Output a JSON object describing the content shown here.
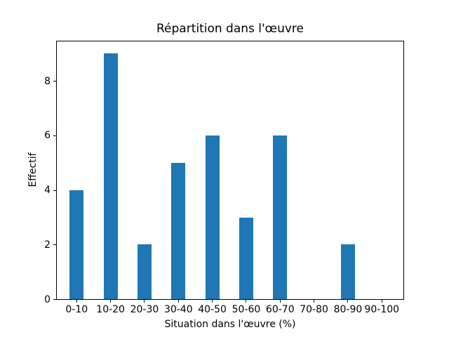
{
  "chart_data": {
    "type": "bar",
    "title": "Répartition dans l'œuvre",
    "xlabel": "Situation dans l'œuvre (%)",
    "ylabel": "Effectif",
    "categories": [
      "0-10",
      "10-20",
      "20-30",
      "30-40",
      "40-50",
      "50-60",
      "60-70",
      "70-80",
      "80-90",
      "90-100"
    ],
    "values": [
      4,
      9,
      2,
      5,
      6,
      3,
      6,
      0,
      2,
      0
    ],
    "yticks": [
      0,
      2,
      4,
      6,
      8
    ],
    "ylim": [
      0,
      9.45
    ],
    "bar_color": "#1f77b4",
    "background_color": "#ffffff",
    "grid": false
  }
}
